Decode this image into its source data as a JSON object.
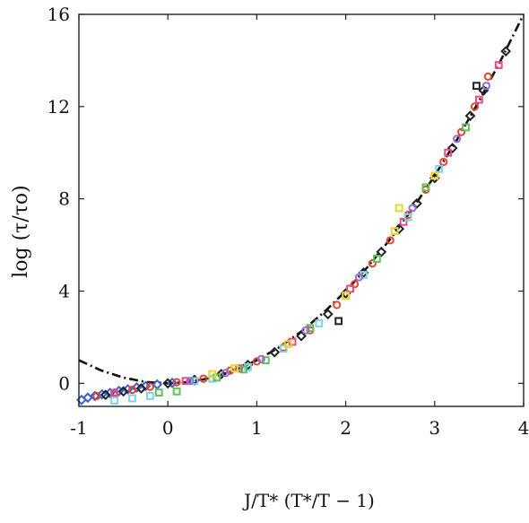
{
  "chart_data": {
    "type": "scatter",
    "title": "",
    "xlabel": "J/T* (T*/T − 1)",
    "ylabel": "log (τ/τo)",
    "xlim": [
      -1,
      4
    ],
    "ylim": [
      -1,
      16
    ],
    "xticks": [
      -1,
      0,
      1,
      2,
      3,
      4
    ],
    "yticks": [
      0,
      4,
      8,
      12,
      16
    ],
    "grid": false,
    "legend": "none",
    "fit_curve": {
      "style": "dash-dot",
      "color": "#111111",
      "x": [
        -1,
        -0.75,
        -0.5,
        -0.25,
        0,
        0.25,
        0.5,
        0.75,
        1,
        1.25,
        1.5,
        1.75,
        2,
        2.25,
        2.5,
        2.75,
        3,
        3.25,
        3.5,
        3.75,
        4
      ],
      "y": [
        1.0,
        0.56,
        0.25,
        0.06,
        0,
        0.06,
        0.25,
        0.56,
        1.0,
        1.56,
        2.25,
        3.06,
        4.0,
        5.06,
        6.25,
        7.56,
        9.0,
        10.56,
        12.25,
        14.06,
        16.0
      ]
    },
    "series": [
      {
        "color": "#3a5fd9",
        "marker": "diamond",
        "x": [
          -0.97,
          -0.9,
          -0.82,
          -0.74,
          -0.65,
          -0.55,
          -0.45,
          -0.35,
          -0.25,
          -0.12,
          0.05,
          0.3
        ],
        "y": [
          -0.72,
          -0.62,
          -0.55,
          -0.48,
          -0.42,
          -0.33,
          -0.26,
          -0.18,
          -0.12,
          -0.05,
          0.02,
          0.12
        ]
      },
      {
        "color": "#e5462b",
        "marker": "circle",
        "x": [
          -0.8,
          -0.6,
          -0.4,
          -0.2,
          0.1,
          0.4,
          0.7,
          1.0,
          1.3,
          1.6,
          1.9,
          2.1,
          2.3,
          2.5,
          2.7,
          2.9,
          3.1,
          3.3,
          3.45,
          3.6
        ],
        "y": [
          -0.55,
          -0.4,
          -0.28,
          -0.15,
          0.05,
          0.2,
          0.55,
          0.95,
          1.55,
          2.3,
          3.4,
          4.3,
          5.2,
          6.2,
          7.3,
          8.4,
          9.6,
          10.9,
          12.0,
          13.3
        ]
      },
      {
        "color": "#222222",
        "marker": "diamond",
        "x": [
          -0.7,
          -0.5,
          -0.3,
          0.0,
          0.3,
          0.6,
          0.9,
          1.2,
          1.5,
          1.8,
          2.0,
          2.2,
          2.4,
          2.6,
          2.8,
          3.0,
          3.2,
          3.4,
          3.55,
          3.8
        ],
        "y": [
          -0.5,
          -0.35,
          -0.22,
          0.0,
          0.15,
          0.4,
          0.8,
          1.35,
          2.05,
          3.0,
          3.9,
          4.8,
          5.7,
          6.7,
          7.8,
          8.9,
          10.2,
          11.6,
          12.7,
          14.4
        ]
      },
      {
        "color": "#222222",
        "marker": "square",
        "x": [
          1.92,
          3.47
        ],
        "y": [
          2.7,
          12.9
        ]
      },
      {
        "color": "#e84b8a",
        "marker": "square",
        "x": [
          -0.6,
          0.2,
          0.8,
          1.4,
          2.05,
          2.65,
          3.15,
          3.5,
          3.72
        ],
        "y": [
          -0.45,
          0.1,
          0.65,
          1.8,
          4.1,
          7.0,
          10.0,
          12.3,
          13.8
        ]
      },
      {
        "color": "#7fd3e6",
        "marker": "square",
        "x": [
          -0.6,
          -0.4,
          -0.2,
          0.3,
          0.5,
          0.9,
          1.3,
          1.7,
          2.2,
          2.7,
          3.05
        ],
        "y": [
          -0.75,
          -0.65,
          -0.55,
          0.1,
          0.2,
          0.7,
          1.5,
          2.6,
          4.7,
          7.2,
          9.3
        ]
      },
      {
        "color": "#5cc45a",
        "marker": "square",
        "x": [
          -0.1,
          0.1,
          0.55,
          0.85,
          1.1,
          1.6,
          2.35,
          2.9,
          3.35
        ],
        "y": [
          -0.4,
          -0.35,
          0.25,
          0.6,
          1.0,
          2.4,
          5.4,
          8.5,
          11.1
        ]
      },
      {
        "color": "#e8d62a",
        "marker": "square",
        "x": [
          0.5,
          0.75,
          1.35,
          2.0,
          2.55,
          2.6,
          3.0
        ],
        "y": [
          0.4,
          0.65,
          1.7,
          3.8,
          6.6,
          7.6,
          9.0
        ]
      },
      {
        "color": "#9a6dd6",
        "marker": "circle",
        "x": [
          0.25,
          0.65,
          1.05,
          1.55,
          2.15,
          2.75,
          3.25,
          3.58
        ],
        "y": [
          0.1,
          0.45,
          1.05,
          2.3,
          4.6,
          7.6,
          10.6,
          12.9
        ]
      }
    ]
  }
}
